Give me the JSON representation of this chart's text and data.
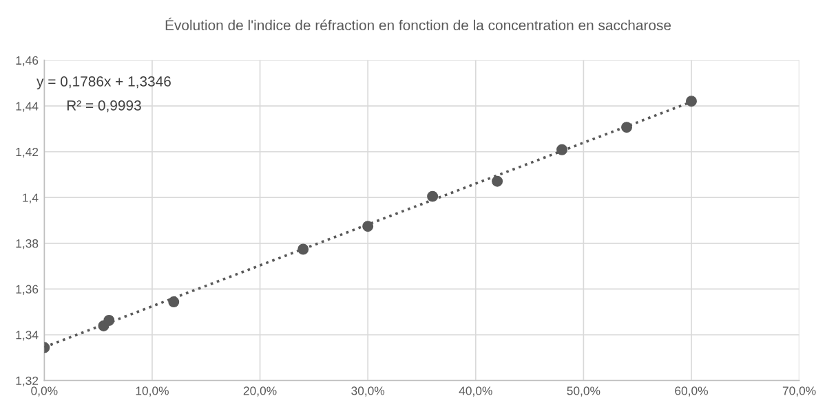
{
  "chart_data": {
    "type": "scatter",
    "title": "Évolution de l'indice de réfraction en fonction de la concentration en saccharose",
    "x": [
      0,
      5.5,
      6,
      12,
      24,
      30,
      36,
      42,
      48,
      54,
      60
    ],
    "series": [
      {
        "color": "#595959",
        "marker": "circle",
        "values": [
          1.3344,
          1.3439,
          1.3463,
          1.3544,
          1.3774,
          1.3874,
          1.4005,
          1.4071,
          1.4209,
          1.4307,
          1.4421
        ]
      },
      {
        "type": "line",
        "color": "#595959",
        "line_style": "dotted",
        "marker": "none",
        "x": [
          0,
          60
        ],
        "values": [
          1.3346,
          1.4418
        ]
      }
    ],
    "annotations": [
      "y = 0,1786x + 1,3346",
      "R² = 0,9993"
    ],
    "xlim": [
      0,
      70
    ],
    "xticks": [
      {
        "value": 0,
        "label": "0,0%"
      },
      {
        "value": 10,
        "label": "10,0%"
      },
      {
        "value": 20,
        "label": "20,0%"
      },
      {
        "value": 30,
        "label": "30,0%"
      },
      {
        "value": 40,
        "label": "40,0%"
      },
      {
        "value": 50,
        "label": "50,0%"
      },
      {
        "value": 60,
        "label": "60,0%"
      },
      {
        "value": 70,
        "label": "70,0%"
      }
    ],
    "ylim": [
      1.32,
      1.46
    ],
    "yticks": [
      {
        "value": 1.32,
        "label": "1,32"
      },
      {
        "value": 1.34,
        "label": "1,34"
      },
      {
        "value": 1.36,
        "label": "1,36"
      },
      {
        "value": 1.38,
        "label": "1,38"
      },
      {
        "value": 1.4,
        "label": "1,4"
      },
      {
        "value": 1.42,
        "label": "1,42"
      },
      {
        "value": 1.44,
        "label": "1,44"
      },
      {
        "value": 1.46,
        "label": "1,46"
      }
    ],
    "grid": true,
    "legend": false
  }
}
